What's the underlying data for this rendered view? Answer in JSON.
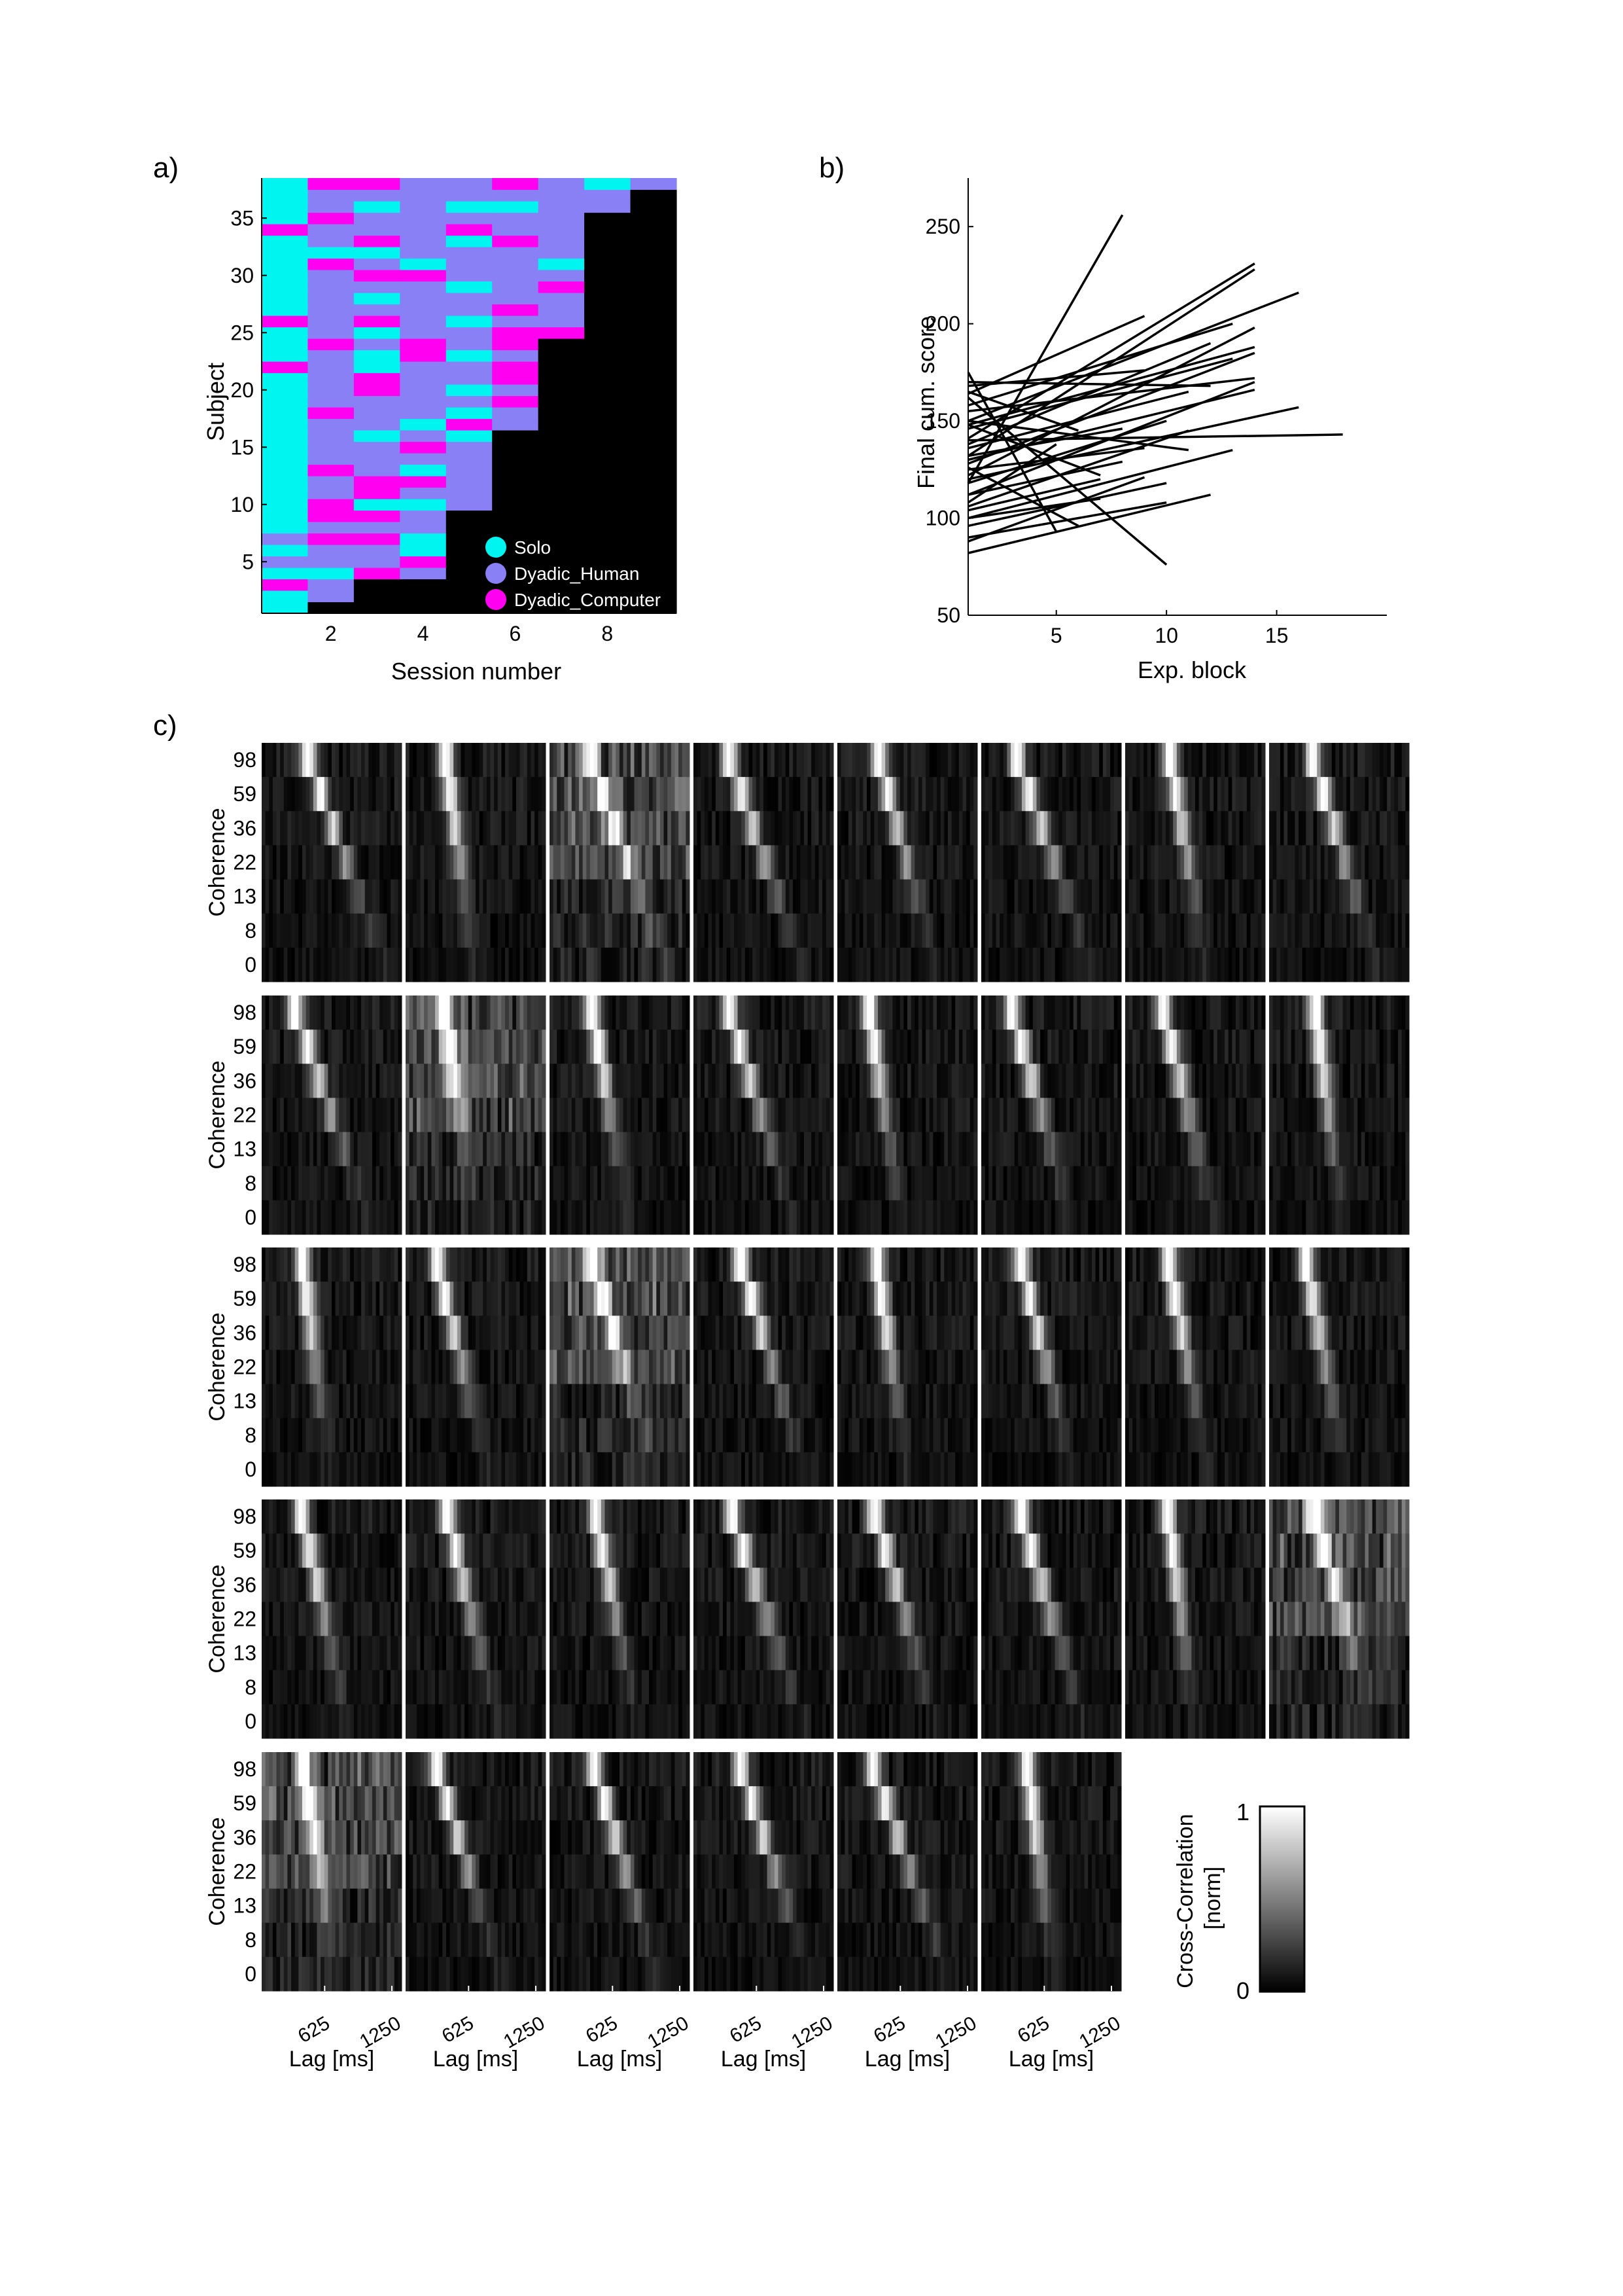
{
  "panel_labels": {
    "a": "a)",
    "b": "b)",
    "c": "c)"
  },
  "colors": {
    "solo": "#00F5F0",
    "dyadic_human": "#8A80F5",
    "dyadic_computer": "#FF00F0",
    "missing": "#000000",
    "line": "#000000"
  },
  "chart_data": [
    {
      "id": "a",
      "type": "heatmap",
      "xlabel": "Session number",
      "ylabel": "Subject",
      "xlim": [
        0.5,
        9.5
      ],
      "ylim": [
        0.5,
        38.5
      ],
      "xticks": [
        2,
        4,
        6,
        8
      ],
      "yticks": [
        5,
        10,
        15,
        20,
        25,
        30,
        35
      ],
      "legend": [
        {
          "name": "Solo",
          "color": "#00F5F0"
        },
        {
          "name": "Dyadic_Human",
          "color": "#8A80F5"
        },
        {
          "name": "Dyadic_Computer",
          "color": "#FF00F0"
        }
      ],
      "legend_position": "bottom-right",
      "sessions_per_subject": [
        1,
        2,
        2,
        4,
        4,
        4,
        4,
        4,
        4,
        5,
        5,
        5,
        5,
        5,
        5,
        5,
        6,
        6,
        6,
        6,
        6,
        6,
        6,
        6,
        7,
        7,
        7,
        7,
        7,
        7,
        7,
        7,
        7,
        7,
        7,
        8,
        8,
        9
      ]
    },
    {
      "id": "b",
      "type": "line",
      "xlabel": "Exp. block",
      "ylabel": "Final cum. score",
      "xlim": [
        1,
        20
      ],
      "ylim": [
        50,
        275
      ],
      "xticks": [
        5,
        10,
        15
      ],
      "yticks": [
        50,
        100,
        150,
        200,
        250
      ],
      "series": [
        {
          "x": [
            1,
            8
          ],
          "y": [
            118,
            256
          ]
        },
        {
          "x": [
            1,
            5
          ],
          "y": [
            175,
            93
          ]
        },
        {
          "x": [
            1,
            10
          ],
          "y": [
            162,
            76
          ]
        },
        {
          "x": [
            1,
            14
          ],
          "y": [
            141,
            231
          ]
        },
        {
          "x": [
            1,
            14
          ],
          "y": [
            132,
            228
          ]
        },
        {
          "x": [
            1,
            16
          ],
          "y": [
            150,
            216
          ]
        },
        {
          "x": [
            1,
            13
          ],
          "y": [
            158,
            200
          ]
        },
        {
          "x": [
            1,
            14
          ],
          "y": [
            122,
            198
          ]
        },
        {
          "x": [
            1,
            9
          ],
          "y": [
            164,
            204
          ]
        },
        {
          "x": [
            1,
            12
          ],
          "y": [
            138,
            190
          ]
        },
        {
          "x": [
            1,
            14
          ],
          "y": [
            148,
            188
          ]
        },
        {
          "x": [
            1,
            14
          ],
          "y": [
            128,
            185
          ]
        },
        {
          "x": [
            1,
            13
          ],
          "y": [
            146,
            182
          ]
        },
        {
          "x": [
            1,
            14
          ],
          "y": [
            155,
            172
          ]
        },
        {
          "x": [
            1,
            12
          ],
          "y": [
            170,
            168
          ]
        },
        {
          "x": [
            1,
            14
          ],
          "y": [
            112,
            170
          ]
        },
        {
          "x": [
            1,
            11
          ],
          "y": [
            136,
            165
          ]
        },
        {
          "x": [
            1,
            14
          ],
          "y": [
            130,
            166
          ]
        },
        {
          "x": [
            1,
            16
          ],
          "y": [
            120,
            157
          ]
        },
        {
          "x": [
            1,
            18
          ],
          "y": [
            140,
            143
          ]
        },
        {
          "x": [
            1,
            10
          ],
          "y": [
            118,
            150
          ]
        },
        {
          "x": [
            1,
            11
          ],
          "y": [
            106,
            145
          ]
        },
        {
          "x": [
            1,
            9
          ],
          "y": [
            125,
            136
          ]
        },
        {
          "x": [
            1,
            13
          ],
          "y": [
            100,
            135
          ]
        },
        {
          "x": [
            1,
            8
          ],
          "y": [
            112,
            129
          ]
        },
        {
          "x": [
            1,
            9
          ],
          "y": [
            88,
            121
          ]
        },
        {
          "x": [
            1,
            10
          ],
          "y": [
            96,
            118
          ]
        },
        {
          "x": [
            1,
            12
          ],
          "y": [
            82,
            112
          ]
        },
        {
          "x": [
            1,
            7
          ],
          "y": [
            100,
            110
          ]
        },
        {
          "x": [
            1,
            10
          ],
          "y": [
            90,
            108
          ]
        },
        {
          "x": [
            1,
            6
          ],
          "y": [
            126,
            96
          ]
        },
        {
          "x": [
            1,
            7
          ],
          "y": [
            148,
            122
          ]
        },
        {
          "x": [
            1,
            6
          ],
          "y": [
            165,
            145
          ]
        },
        {
          "x": [
            1,
            8
          ],
          "y": [
            132,
            146
          ]
        },
        {
          "x": [
            1,
            11
          ],
          "y": [
            150,
            135
          ]
        },
        {
          "x": [
            1,
            5
          ],
          "y": [
            108,
            138
          ]
        },
        {
          "x": [
            1,
            9
          ],
          "y": [
            168,
            176
          ]
        },
        {
          "x": [
            1,
            7
          ],
          "y": [
            104,
            120
          ]
        }
      ]
    },
    {
      "id": "c",
      "type": "heatmap",
      "grid": {
        "rows": 5,
        "cols": 8,
        "last_row_cols": 6
      },
      "ylabel": "Coherence",
      "xlabel": "Lag [ms]",
      "yticks": [
        "98",
        "59",
        "36",
        "22",
        "13",
        "8",
        "0"
      ],
      "xticks": [
        "625",
        "1250"
      ],
      "colorbar": {
        "label": "Cross-Correlation\n[norm]",
        "min": "0",
        "max": "1",
        "colormap": "gray"
      }
    }
  ]
}
